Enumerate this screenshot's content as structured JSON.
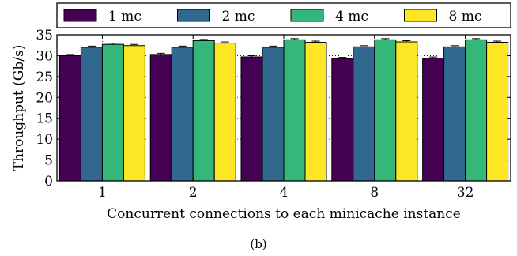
{
  "chart_data": {
    "type": "bar",
    "title": "",
    "xlabel": "Concurrent connections to each minicache instance",
    "ylabel": "Throughput (Gb/s)",
    "ylim": [
      0,
      35
    ],
    "yticks": [
      "0",
      "5",
      "10",
      "15",
      "20",
      "25",
      "30",
      "35"
    ],
    "categories": [
      "1",
      "2",
      "4",
      "8",
      "32"
    ],
    "grid": "dotted horizontal and vertical",
    "legend_placement": "top, above plot",
    "series": [
      {
        "name": "1 mc",
        "color": "#440154",
        "values": [
          30.0,
          30.3,
          29.7,
          29.3,
          29.4
        ]
      },
      {
        "name": "2 mc",
        "color": "#31688e",
        "values": [
          32.0,
          32.0,
          32.0,
          32.1,
          32.1
        ]
      },
      {
        "name": "4 mc",
        "color": "#35b779",
        "values": [
          32.7,
          33.6,
          33.8,
          33.8,
          33.8
        ]
      },
      {
        "name": "8 mc",
        "color": "#fde725",
        "values": [
          32.4,
          33.0,
          33.2,
          33.3,
          33.2
        ]
      }
    ]
  },
  "caption": "(b)"
}
